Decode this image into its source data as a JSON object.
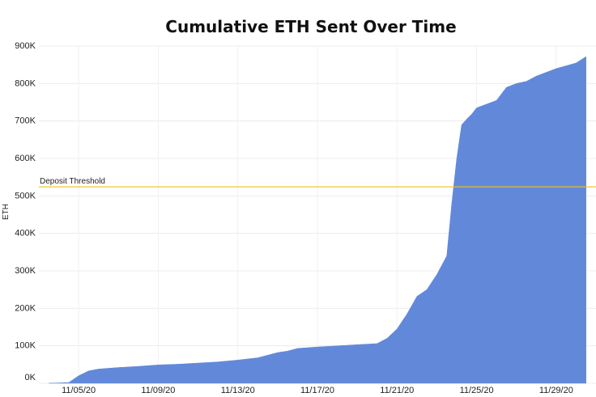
{
  "chart_data": {
    "type": "area",
    "title": "Cumulative ETH Sent Over Time",
    "xlabel": "",
    "ylabel": "ETH",
    "ylim": [
      0,
      900000
    ],
    "x_ticks": [
      "11/05/20",
      "11/09/20",
      "11/13/20",
      "11/17/20",
      "11/21/20",
      "11/25/20",
      "11/29/20"
    ],
    "y_ticks": [
      "0K",
      "100K",
      "200K",
      "300K",
      "400K",
      "500K",
      "600K",
      "700K",
      "800K",
      "900K"
    ],
    "threshold": {
      "label": "Deposit Threshold",
      "value": 524288,
      "color": "#f2c21b"
    },
    "fill_color": "#6289d9",
    "grid": true,
    "series": [
      {
        "x": [
          "11/03/20 12:00",
          "11/04/20 12:00",
          "11/05/20 00:00",
          "11/05/20 12:00",
          "11/06/20 00:00",
          "11/07/20 00:00",
          "11/08/20 00:00",
          "11/09/20 00:00",
          "11/10/20 00:00",
          "11/11/20 00:00",
          "11/12/20 00:00",
          "11/13/20 00:00",
          "11/14/20 00:00",
          "11/15/20 00:00",
          "11/15/20 12:00",
          "11/16/20 00:00",
          "11/17/20 00:00",
          "11/18/20 00:00",
          "11/19/20 00:00",
          "11/20/20 00:00",
          "11/20/20 12:00",
          "11/21/20 00:00",
          "11/21/20 12:00",
          "11/22/20 00:00",
          "11/22/20 12:00",
          "11/23/20 00:00",
          "11/23/20 12:00",
          "11/23/20 18:00",
          "11/24/20 00:00",
          "11/24/20 06:00",
          "11/24/20 12:00",
          "11/24/20 18:00",
          "11/25/20 00:00",
          "11/25/20 12:00",
          "11/26/20 00:00",
          "11/26/20 12:00",
          "11/27/20 00:00",
          "11/27/20 12:00",
          "11/28/20 00:00",
          "11/29/20 00:00",
          "11/30/20 00:00",
          "11/30/20 12:00"
        ],
        "values": [
          0,
          2000,
          20000,
          33000,
          38000,
          42000,
          45000,
          49000,
          51000,
          54000,
          57000,
          62000,
          68000,
          82000,
          86000,
          93000,
          97000,
          100000,
          103000,
          106000,
          120000,
          145000,
          185000,
          232000,
          250000,
          290000,
          340000,
          480000,
          600000,
          690000,
          705000,
          718000,
          735000,
          745000,
          755000,
          790000,
          800000,
          806000,
          820000,
          840000,
          855000,
          872000
        ]
      }
    ]
  }
}
